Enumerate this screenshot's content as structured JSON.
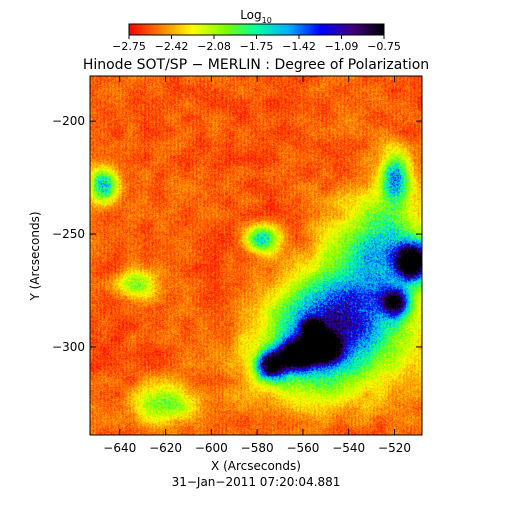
{
  "colorbar": {
    "label_base": "Log",
    "label_sub": "10",
    "ticks": [
      "−2.75",
      "−2.42",
      "−2.08",
      "−1.75",
      "−1.42",
      "−1.09",
      "−0.75"
    ],
    "min": -2.75,
    "max": -0.75,
    "stops": [
      "#ff0000",
      "#ff8000",
      "#ffff00",
      "#80ff00",
      "#00ffa0",
      "#00b0ff",
      "#0000ff",
      "#400080",
      "#000000"
    ]
  },
  "title": "Hinode SOT/SP − MERLIN : Degree of Polarization",
  "timestamp": "31−Jan−2011 07:20:04.881",
  "chart_data": {
    "type": "heatmap",
    "title": "Hinode SOT/SP − MERLIN : Degree of Polarization",
    "xlabel": "X (Arcseconds)",
    "ylabel": "Y (Arcseconds)",
    "xlim": [
      -653,
      -508
    ],
    "ylim": [
      -339,
      -180
    ],
    "x_ticks": [
      -640,
      -620,
      -600,
      -580,
      -560,
      -540,
      -520
    ],
    "y_ticks": [
      -200,
      -250,
      -300
    ],
    "x_tick_labels": [
      "−640",
      "−620",
      "−600",
      "−580",
      "−560",
      "−540",
      "−520"
    ],
    "y_tick_labels": [
      "−200",
      "−250",
      "−300"
    ],
    "colorbar_range": [
      -2.75,
      -0.75
    ],
    "features": [
      {
        "x": -562,
        "y": -303,
        "sx": 5,
        "sy": 4,
        "amp": 1.35
      },
      {
        "x": -550,
        "y": -300,
        "sx": 4,
        "sy": 4,
        "amp": 1.2
      },
      {
        "x": -574,
        "y": -308,
        "sx": 4,
        "sy": 4,
        "amp": 1.1
      },
      {
        "x": -556,
        "y": -292,
        "sx": 3,
        "sy": 3,
        "amp": 1.0
      },
      {
        "x": -512,
        "y": -262,
        "sx": 5,
        "sy": 5,
        "amp": 1.45
      },
      {
        "x": -520,
        "y": -280,
        "sx": 4,
        "sy": 4,
        "amp": 0.9
      },
      {
        "x": -548,
        "y": -285,
        "sx": 16,
        "sy": 14,
        "amp": 0.65
      },
      {
        "x": -560,
        "y": -305,
        "sx": 16,
        "sy": 12,
        "amp": 0.55
      },
      {
        "x": -525,
        "y": -255,
        "sx": 14,
        "sy": 16,
        "amp": 0.55
      },
      {
        "x": -530,
        "y": -290,
        "sx": 18,
        "sy": 20,
        "amp": 0.35
      },
      {
        "x": -578,
        "y": -252,
        "sx": 5,
        "sy": 4,
        "amp": 0.6
      },
      {
        "x": -520,
        "y": -225,
        "sx": 4,
        "sy": 8,
        "amp": 0.7
      },
      {
        "x": -647,
        "y": -228,
        "sx": 4,
        "sy": 5,
        "amp": 0.7
      },
      {
        "x": -633,
        "y": -272,
        "sx": 6,
        "sy": 4,
        "amp": 0.45
      },
      {
        "x": -620,
        "y": -325,
        "sx": 10,
        "sy": 6,
        "amp": 0.4
      }
    ]
  }
}
